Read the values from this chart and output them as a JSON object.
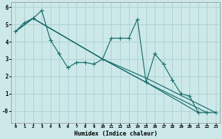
{
  "xlabel": "Humidex (Indice chaleur)",
  "ylabel": "",
  "background_color": "#cce8e8",
  "grid_color": "#aacfcf",
  "line_color": "#1a6e6e",
  "xlim": [
    -0.5,
    23.5
  ],
  "ylim": [
    -0.7,
    6.3
  ],
  "xticks": [
    0,
    1,
    2,
    3,
    4,
    5,
    6,
    7,
    8,
    9,
    10,
    11,
    12,
    13,
    14,
    15,
    16,
    17,
    18,
    19,
    20,
    21,
    22,
    23
  ],
  "yticks": [
    0,
    1,
    2,
    3,
    4,
    5,
    6
  ],
  "ytick_labels": [
    "-0",
    "1",
    "2",
    "3",
    "4",
    "5",
    "6"
  ],
  "line1_x": [
    0,
    1,
    2,
    3,
    4,
    5,
    6,
    7,
    8,
    9,
    10,
    11,
    12,
    13,
    14,
    15,
    16,
    17,
    18,
    19,
    20,
    21,
    22,
    23
  ],
  "line1_y": [
    4.6,
    5.1,
    5.35,
    5.8,
    4.1,
    3.3,
    2.5,
    2.8,
    2.8,
    2.7,
    3.0,
    4.2,
    4.2,
    4.2,
    5.3,
    1.65,
    3.3,
    2.7,
    1.8,
    1.0,
    0.85,
    -0.1,
    -0.1,
    -0.1
  ],
  "line2_x": [
    0,
    2,
    10,
    15,
    21
  ],
  "line2_y": [
    4.6,
    5.35,
    3.0,
    1.65,
    -0.1
  ],
  "line3_x": [
    0,
    2,
    10,
    15,
    22
  ],
  "line3_y": [
    4.6,
    5.35,
    3.0,
    1.65,
    -0.1
  ],
  "line4_x": [
    0,
    2,
    10,
    15,
    23
  ],
  "line4_y": [
    4.6,
    5.35,
    3.0,
    1.9,
    -0.1
  ]
}
